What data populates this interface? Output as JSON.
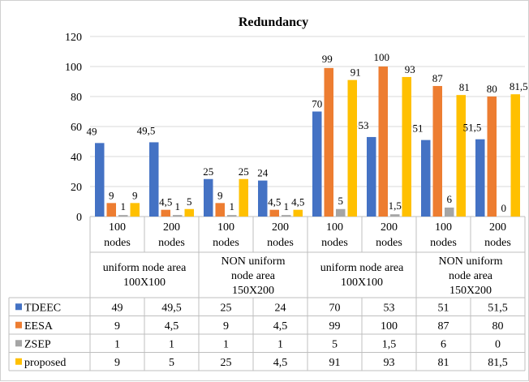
{
  "chart_data": {
    "type": "bar",
    "title": "Redundancy",
    "ylim": [
      0,
      120
    ],
    "yticks": [
      0,
      20,
      40,
      60,
      80,
      100,
      120
    ],
    "grid": true,
    "legend_placement": "table-left",
    "categories": [
      {
        "sub": [
          "100",
          "nodes"
        ]
      },
      {
        "sub": [
          "200",
          "nodes"
        ]
      },
      {
        "sub": [
          "100",
          "nodes"
        ]
      },
      {
        "sub": [
          "200",
          "nodes"
        ]
      },
      {
        "sub": [
          "100",
          "nodes"
        ]
      },
      {
        "sub": [
          "200",
          "nodes"
        ]
      },
      {
        "sub": [
          "100",
          "nodes"
        ]
      },
      {
        "sub": [
          "200",
          "nodes"
        ]
      }
    ],
    "groups": [
      {
        "label": [
          "uniform node area",
          "100X100"
        ]
      },
      {
        "label": [
          "NON uniform",
          "node area",
          "150X200"
        ]
      },
      {
        "label": [
          "uniform node area",
          "100X100"
        ]
      },
      {
        "label": [
          "NON uniform",
          "node area",
          "150X200"
        ]
      }
    ],
    "series": [
      {
        "name": "TDEEC",
        "color": "#4472c4",
        "values": [
          49,
          49.5,
          25,
          24,
          70,
          53,
          51,
          51.5
        ],
        "labels": [
          "49",
          "49,5",
          "25",
          "24",
          "70",
          "53",
          "51",
          "51,5"
        ]
      },
      {
        "name": "EESA",
        "color": "#ed7d31",
        "values": [
          9,
          4.5,
          9,
          4.5,
          99,
          100,
          87,
          80
        ],
        "labels": [
          "9",
          "4,5",
          "9",
          "4,5",
          "99",
          "100",
          "87",
          "80"
        ]
      },
      {
        "name": "ZSEP",
        "color": "#a5a5a5",
        "values": [
          1,
          1,
          1,
          1,
          5,
          1.5,
          6,
          0
        ],
        "labels": [
          "1",
          "1",
          "1",
          "1",
          "5",
          "1,5",
          "6",
          "0"
        ]
      },
      {
        "name": "proposed",
        "color": "#ffc000",
        "values": [
          9,
          5,
          25,
          4.5,
          91,
          93,
          81,
          81.5
        ],
        "labels": [
          "9",
          "5",
          "25",
          "4,5",
          "91",
          "93",
          "81",
          "81,5"
        ]
      }
    ]
  }
}
